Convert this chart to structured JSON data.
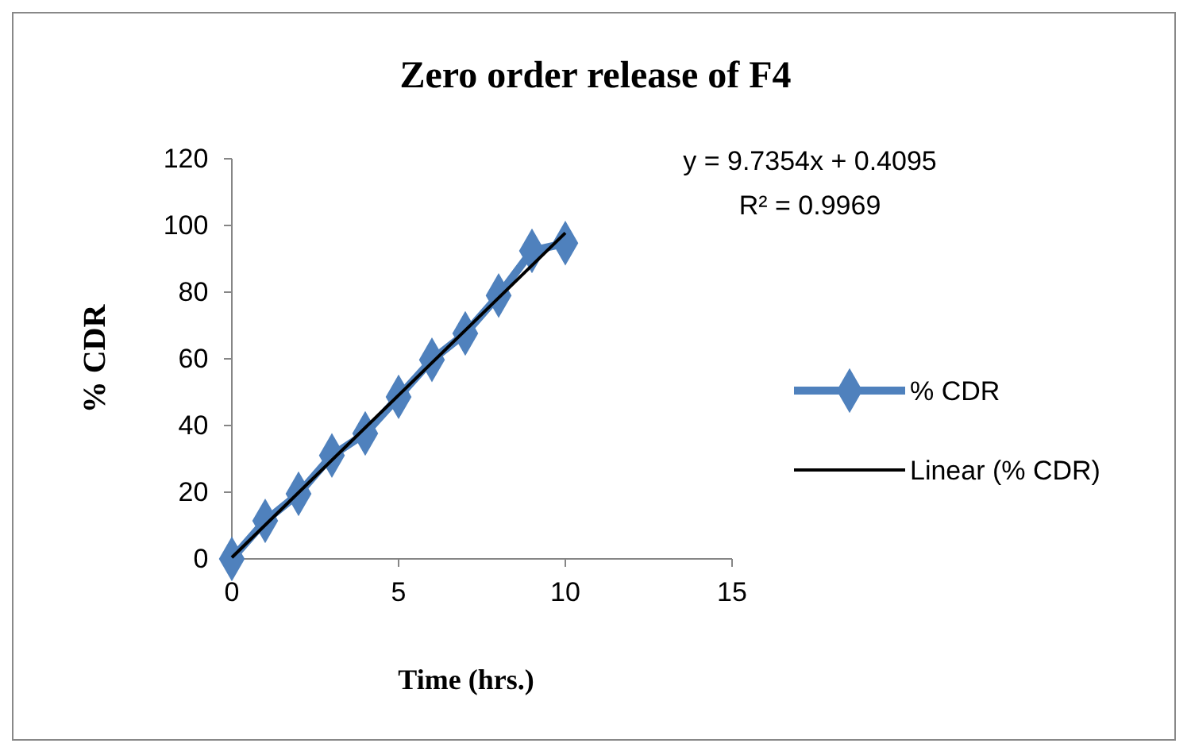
{
  "chart_data": {
    "type": "line",
    "title": "Zero order release of F4",
    "xlabel": "Time (hrs.)",
    "ylabel": "% CDR",
    "xlim": [
      0,
      15
    ],
    "xticks": [
      0,
      5,
      10,
      15
    ],
    "ylim": [
      0,
      120
    ],
    "yticks": [
      0,
      20,
      40,
      60,
      80,
      100,
      120
    ],
    "grid": false,
    "legend": "right",
    "marker": "diamond",
    "series": [
      {
        "name": "% CDR",
        "color": "#4f81bd",
        "x": [
          0,
          1,
          2,
          3,
          4,
          5,
          6,
          7,
          8,
          9,
          10
        ],
        "values": [
          0,
          11.4,
          19.5,
          31,
          37.6,
          48.6,
          59.7,
          67.6,
          79,
          92.4,
          94.7
        ]
      },
      {
        "name": "Linear (% CDR)",
        "color": "#000000",
        "type": "line",
        "marker": "none",
        "x": [
          0,
          10
        ],
        "values": [
          0.4095,
          97.7635
        ]
      }
    ],
    "annotations": [
      "y = 9.7354x + 0.4095",
      "R² = 0.9969"
    ]
  }
}
